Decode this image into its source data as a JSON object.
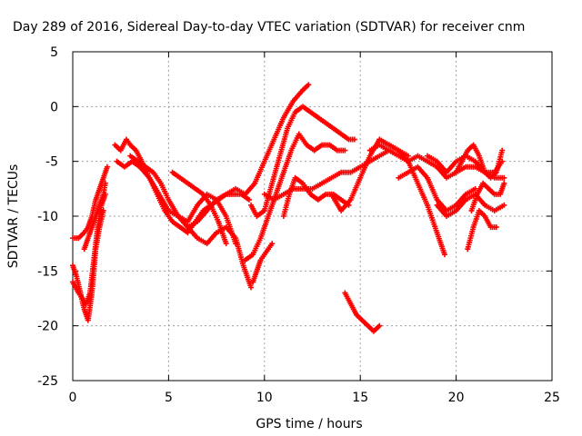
{
  "chart_data": {
    "type": "scatter",
    "title": "Day 289 of 2016, Sidereal Day-to-day VTEC variation (SDTVAR) for receiver cnm",
    "xlabel": "GPS time / hours",
    "ylabel": "SDTVAR / TECUs",
    "xlim": [
      0,
      25
    ],
    "ylim": [
      -25,
      5
    ],
    "xticks": [
      "0",
      "5",
      "10",
      "15",
      "20",
      "25"
    ],
    "yticks": [
      "5",
      "0",
      "-5",
      "-10",
      "-15",
      "-20",
      "-25"
    ],
    "grid": true,
    "marker": "plus",
    "color": "#ff0000",
    "series": [
      {
        "name": "s1",
        "x": [
          0,
          0.3,
          0.6,
          0.8,
          1.0,
          1.2,
          1.4,
          1.6,
          1.8
        ],
        "y": [
          -12,
          -12,
          -11.5,
          -11,
          -10,
          -8.5,
          -7.5,
          -6.5,
          -5.5
        ]
      },
      {
        "name": "s2",
        "x": [
          0,
          0.2,
          0.4,
          0.6,
          0.8,
          1.0,
          1.2,
          1.4,
          1.6
        ],
        "y": [
          -14.5,
          -15.5,
          -17,
          -18.5,
          -19.5,
          -17,
          -13,
          -11,
          -9.5
        ]
      },
      {
        "name": "s3",
        "x": [
          0,
          0.3,
          0.5,
          0.7,
          0.9,
          1.1,
          1.3,
          1.5,
          1.7
        ],
        "y": [
          -16,
          -17,
          -17.5,
          -18,
          -17,
          -14,
          -11,
          -9,
          -8
        ]
      },
      {
        "name": "s4",
        "x": [
          0.6,
          0.8,
          1.0,
          1.2,
          1.4,
          1.6,
          1.7
        ],
        "y": [
          -13,
          -12,
          -11,
          -10,
          -9,
          -8,
          -7
        ]
      },
      {
        "name": "s5",
        "x": [
          2.2,
          2.5,
          2.8,
          3.0,
          3.3,
          3.6,
          4.0,
          4.4,
          4.8,
          5.2,
          5.6,
          6.0,
          6.4,
          6.8,
          7.2,
          7.6,
          8.0,
          8.4,
          8.8,
          9.2
        ],
        "y": [
          -3.5,
          -4,
          -3,
          -3.5,
          -4,
          -5,
          -6.5,
          -8,
          -9.5,
          -10.5,
          -11,
          -11.5,
          -10.5,
          -9.5,
          -9,
          -8.5,
          -8,
          -8,
          -8,
          -8.5
        ]
      },
      {
        "name": "s6",
        "x": [
          2.3,
          2.7,
          3.1,
          3.5,
          4.0,
          4.5,
          5.0,
          5.5,
          6.0,
          6.5,
          7.0,
          7.5,
          8.0,
          8.5,
          8.9,
          9.3
        ],
        "y": [
          -5,
          -5.5,
          -5,
          -5.5,
          -6.5,
          -8,
          -9.5,
          -10,
          -11,
          -12,
          -12.5,
          -11.5,
          -11,
          -12,
          -14.5,
          -16.5
        ]
      },
      {
        "name": "s7",
        "x": [
          3.0,
          3.4,
          3.8,
          4.2,
          4.6,
          5.0,
          5.5,
          6.0,
          6.5,
          7.0,
          7.5,
          8.0,
          8.5
        ],
        "y": [
          -4.5,
          -5,
          -5.5,
          -6,
          -7,
          -8.5,
          -10,
          -10.5,
          -9,
          -8,
          -8.5,
          -10,
          -12.5
        ]
      },
      {
        "name": "s8",
        "x": [
          5.2,
          5.6,
          6.0,
          6.4,
          6.8,
          7.2,
          7.6,
          8.0
        ],
        "y": [
          -6,
          -6.5,
          -7,
          -7.5,
          -8,
          -9,
          -10.5,
          -12.5
        ]
      },
      {
        "name": "s9",
        "x": [
          6.0,
          6.5,
          7.0,
          7.5,
          8.0,
          8.5,
          9.0,
          9.5,
          10.0,
          10.5,
          11.0,
          11.5,
          12.0,
          12.3
        ],
        "y": [
          -11,
          -10.5,
          -9.5,
          -8.5,
          -8,
          -7.5,
          -8,
          -7,
          -5,
          -3,
          -1,
          0.5,
          1.5,
          2
        ]
      },
      {
        "name": "s10",
        "x": [
          9.3,
          9.6,
          10.0,
          10.4,
          10.8,
          11.2,
          11.6,
          12.0,
          12.4,
          12.8,
          13.2,
          13.6,
          14.0,
          14.4,
          14.7
        ],
        "y": [
          -9,
          -10,
          -9.5,
          -7,
          -4.5,
          -2,
          -0.5,
          0,
          -0.5,
          -1,
          -1.5,
          -2,
          -2.5,
          -3,
          -3
        ]
      },
      {
        "name": "s11",
        "x": [
          9.0,
          9.4,
          9.8,
          10.2,
          10.6,
          11.0,
          11.4,
          11.8,
          12.2,
          12.6,
          13.0,
          13.4,
          13.8,
          14.2
        ],
        "y": [
          -14,
          -13.5,
          -12,
          -10,
          -8,
          -6,
          -4,
          -2.5,
          -3.5,
          -4,
          -3.5,
          -3.5,
          -4,
          -4
        ]
      },
      {
        "name": "s12",
        "x": [
          10.0,
          10.5,
          11.0,
          11.5,
          12.0,
          12.5,
          13.0,
          13.5,
          14.0,
          14.5,
          15.0,
          15.5,
          16.0,
          16.5
        ],
        "y": [
          -8,
          -8.5,
          -8,
          -7.5,
          -7.5,
          -7.5,
          -7,
          -6.5,
          -6,
          -6,
          -5.5,
          -5,
          -4.5,
          -4
        ]
      },
      {
        "name": "s13",
        "x": [
          11.0,
          11.3,
          11.6,
          12.0,
          12.4,
          12.8,
          13.2,
          13.6,
          14.0,
          14.4
        ],
        "y": [
          -10,
          -8,
          -6.5,
          -7,
          -8,
          -8.5,
          -8,
          -8,
          -8.5,
          -9
        ]
      },
      {
        "name": "s14",
        "x": [
          13.5,
          14.0,
          14.5,
          15.0,
          15.5,
          16.0,
          16.5,
          17.0,
          17.5
        ],
        "y": [
          -8,
          -9.5,
          -8.5,
          -6.5,
          -4.5,
          -3,
          -3.5,
          -4,
          -4.5
        ]
      },
      {
        "name": "s15",
        "x": [
          14.2,
          14.5,
          14.8,
          15.1,
          15.4,
          15.7,
          16.0
        ],
        "y": [
          -17,
          -18,
          -19,
          -19.5,
          -20,
          -20.5,
          -20
        ]
      },
      {
        "name": "s16",
        "x": [
          15.5,
          16.0,
          16.5,
          17.0,
          17.5,
          18.0,
          18.5,
          19.0,
          19.5,
          20.0,
          20.5,
          21.0,
          21.5,
          22.0,
          22.4
        ],
        "y": [
          -4,
          -3.5,
          -4,
          -4.5,
          -5,
          -4.5,
          -5,
          -5.5,
          -6.5,
          -6,
          -5.5,
          -5.5,
          -6,
          -6,
          -5
        ]
      },
      {
        "name": "s17",
        "x": [
          16.0,
          16.5,
          17.0,
          17.5,
          18.0,
          18.5,
          19.0,
          19.4
        ],
        "y": [
          -3,
          -3.5,
          -4,
          -5,
          -7,
          -9,
          -11.5,
          -13.5
        ]
      },
      {
        "name": "s18",
        "x": [
          17.0,
          17.5,
          18.0,
          18.5,
          19.0,
          19.5,
          20.0,
          20.5,
          21.0
        ],
        "y": [
          -6.5,
          -6,
          -5.5,
          -6.5,
          -8.5,
          -9.5,
          -9,
          -8,
          -7.5
        ]
      },
      {
        "name": "s19",
        "x": [
          18.5,
          19.0,
          19.5,
          20.0,
          20.5,
          21.0,
          21.5,
          22.0,
          22.5
        ],
        "y": [
          -4.5,
          -5,
          -6,
          -5,
          -4.5,
          -5,
          -6,
          -6.5,
          -6.5
        ]
      },
      {
        "name": "s20",
        "x": [
          19.0,
          19.5,
          20.0,
          20.5,
          21.0,
          21.5,
          22.0,
          22.5
        ],
        "y": [
          -9,
          -10,
          -9.5,
          -8.5,
          -8,
          -9,
          -9.5,
          -9
        ]
      },
      {
        "name": "s21",
        "x": [
          20.0,
          20.3,
          20.6,
          20.9,
          21.2,
          21.5,
          21.8,
          22.1,
          22.4
        ],
        "y": [
          -6,
          -5,
          -4,
          -3.5,
          -4.5,
          -6,
          -6.5,
          -6,
          -4
        ]
      },
      {
        "name": "s22",
        "x": [
          20.6,
          20.9,
          21.2,
          21.5,
          21.8,
          22.1
        ],
        "y": [
          -13,
          -11,
          -9.5,
          -10,
          -11,
          -11
        ]
      },
      {
        "name": "s23",
        "x": [
          20.8,
          21.1,
          21.4,
          21.7,
          22.0,
          22.3,
          22.5
        ],
        "y": [
          -9.5,
          -8,
          -7,
          -7.5,
          -8,
          -8,
          -7
        ]
      },
      {
        "name": "s24",
        "x": [
          9.4,
          9.6,
          9.8,
          10.0,
          10.2,
          10.4
        ],
        "y": [
          -16,
          -15,
          -14,
          -13.5,
          -13,
          -12.5
        ]
      }
    ]
  }
}
